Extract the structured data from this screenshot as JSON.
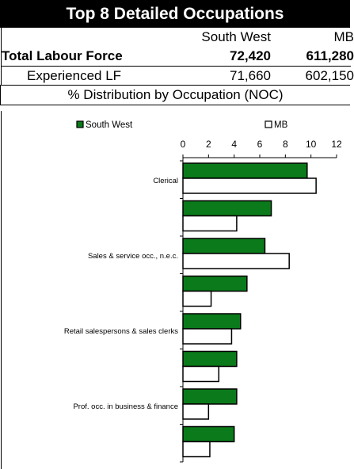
{
  "header": {
    "title": "Top 8 Detailed Occupations"
  },
  "table": {
    "col_region": "South West",
    "col_mb": "MB",
    "rows": [
      {
        "label": "Total Labour Force",
        "region": "72,420",
        "mb": "611,280"
      },
      {
        "label": "Experienced LF",
        "region": "71,660",
        "mb": "602,150"
      }
    ]
  },
  "subtitle": "% Distribution by Occupation (NOC)",
  "chart_data": {
    "type": "bar",
    "orientation": "horizontal",
    "categories": [
      "Clerical",
      "",
      "Sales & service occ., n.e.c.",
      "",
      "Retail salespersons & sales clerks",
      "",
      "Prof. occ. in business & finance",
      ""
    ],
    "series": [
      {
        "name": "South West",
        "color": "#0a7a1a",
        "values": [
          9.7,
          6.9,
          6.4,
          5.0,
          4.5,
          4.2,
          4.2,
          4.0
        ]
      },
      {
        "name": "MB",
        "color": "#ffffff",
        "values": [
          10.4,
          4.2,
          8.3,
          2.2,
          3.8,
          2.8,
          2.0,
          2.1
        ]
      }
    ],
    "xlim": [
      0,
      12
    ],
    "xticks": [
      0,
      2,
      4,
      6,
      8,
      10,
      12
    ],
    "legend_position": "top"
  }
}
